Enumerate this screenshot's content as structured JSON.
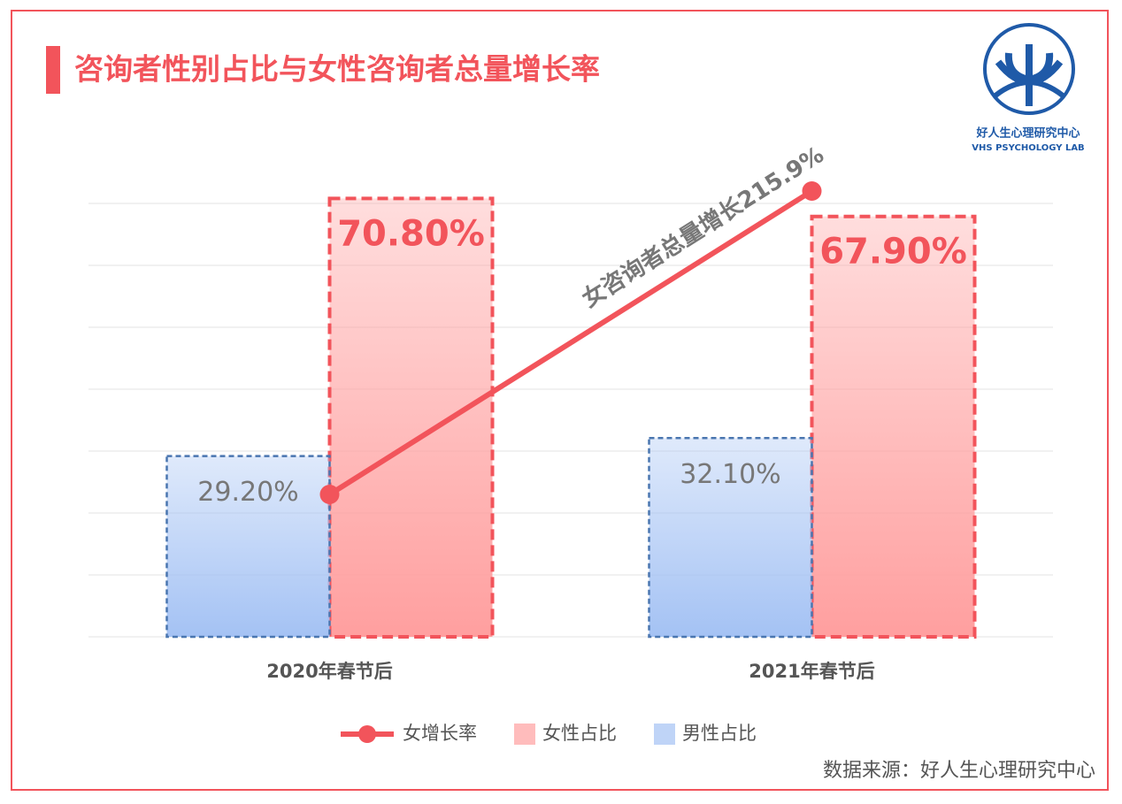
{
  "chart_data": {
    "type": "bar",
    "title": "咨询者性别占比与女性咨询者总量增长率",
    "logo": {
      "name": "好人生心理研究中心",
      "subname": "VHS PSYCHOLOGY LAB"
    },
    "source": "数据来源：好人生心理研究中心",
    "annotation": "女咨询者总量增长215.9%",
    "categories": [
      "2020年春节后",
      "2021年春节后"
    ],
    "series": [
      {
        "name": "女增长率",
        "type": "line",
        "color": "#f2545b",
        "values": [
          23,
          72
        ]
      },
      {
        "name": "女性占比",
        "type": "bar",
        "color": "#ff9f9f",
        "values": [
          70.8,
          67.9
        ],
        "value_labels": [
          "70.80%",
          "67.90%"
        ]
      },
      {
        "name": "男性占比",
        "type": "bar",
        "color": "#a4c2f4",
        "values": [
          29.2,
          32.1
        ],
        "value_labels": [
          "29.20%",
          "32.10%"
        ]
      }
    ],
    "ylim": [
      0,
      80
    ],
    "yticks": [
      0,
      10,
      20,
      30,
      40,
      50,
      60,
      70
    ],
    "grid": true,
    "legend": "bottom"
  }
}
